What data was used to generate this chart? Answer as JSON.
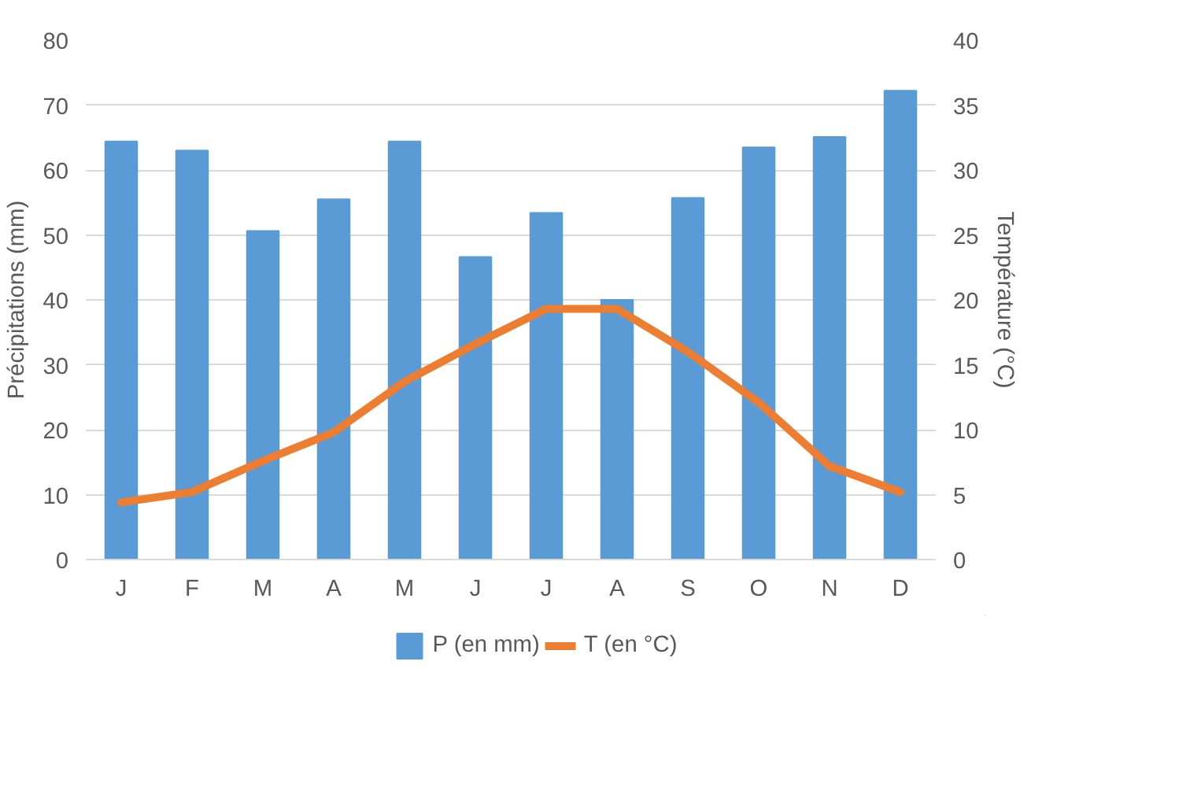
{
  "chart_data": {
    "type": "bar",
    "categories": [
      "J",
      "F",
      "M",
      "A",
      "M",
      "J",
      "J",
      "A",
      "S",
      "O",
      "N",
      "D"
    ],
    "ylabel": "Précipitations (mm)",
    "y2label": "Température (°C)",
    "ylim": [
      0,
      80
    ],
    "yticks": [
      0,
      10,
      20,
      30,
      40,
      50,
      60,
      70,
      80
    ],
    "y2lim": [
      0,
      40
    ],
    "y2ticks": [
      0,
      5,
      10,
      15,
      20,
      25,
      30,
      35,
      40
    ],
    "grid": "y",
    "legend": "bottom",
    "series": [
      {
        "name": "P (en mm)",
        "type": "bar",
        "color": "#5b9bd5",
        "values": [
          64.4,
          63.0,
          50.6,
          55.5,
          64.4,
          46.6,
          53.4,
          40.0,
          55.7,
          63.5,
          65.1,
          72.2
        ]
      },
      {
        "name": "T (en °C)",
        "type": "line",
        "axis": "y2",
        "color": "#ed7d31",
        "values": [
          4.4,
          5.2,
          7.6,
          9.8,
          13.7,
          16.6,
          19.3,
          19.3,
          16.0,
          12.1,
          7.2,
          5.2
        ]
      }
    ]
  }
}
